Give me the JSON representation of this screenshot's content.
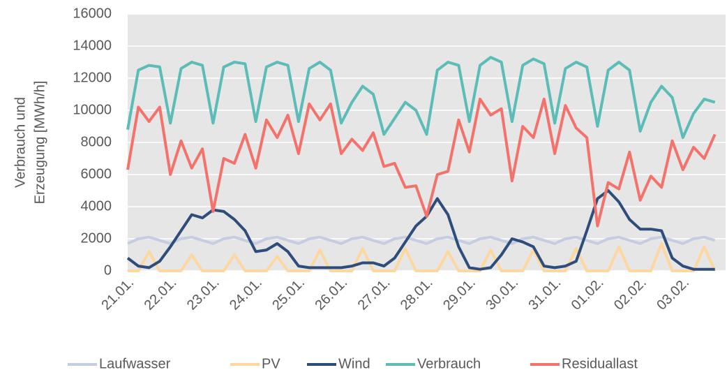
{
  "chart_data": {
    "type": "line",
    "y_label": [
      "Verbrauch und",
      "Erzeugung [MWh/h]"
    ],
    "categories": [
      "21.01.",
      null,
      null,
      null,
      "22.01.",
      null,
      null,
      null,
      "23.01.",
      null,
      null,
      null,
      "24.01.",
      null,
      null,
      null,
      "25.01.",
      null,
      null,
      null,
      "26.01.",
      null,
      null,
      null,
      "27.01.",
      null,
      null,
      null,
      "28.01.",
      null,
      null,
      null,
      "29.01.",
      null,
      null,
      null,
      "30.01.",
      null,
      null,
      null,
      "31.01.",
      null,
      null,
      null,
      "01.02.",
      null,
      null,
      null,
      "02.02.",
      null,
      null,
      null,
      "03.02.",
      null,
      null,
      null
    ],
    "series": [
      {
        "name": "Laufwasser",
        "color": "#c5cee0",
        "values": [
          1700,
          2000,
          2100,
          1900,
          1700,
          2000,
          2100,
          1900,
          1700,
          2000,
          2100,
          1900,
          1700,
          2000,
          2100,
          1900,
          1700,
          2000,
          2100,
          1900,
          1700,
          2000,
          2100,
          1900,
          1700,
          2000,
          2100,
          1900,
          1700,
          2000,
          2100,
          1900,
          1700,
          2000,
          2100,
          1900,
          1700,
          2000,
          2100,
          1900,
          1700,
          2000,
          2100,
          1900,
          1700,
          2000,
          2100,
          1900,
          1700,
          2000,
          2100,
          1900,
          1700,
          2000,
          2100,
          1900
        ]
      },
      {
        "name": "PV",
        "color": "#fdd7a0",
        "values": [
          0,
          0,
          1200,
          0,
          0,
          0,
          1000,
          0,
          0,
          0,
          1000,
          0,
          0,
          0,
          900,
          0,
          0,
          0,
          1300,
          0,
          0,
          0,
          1400,
          0,
          0,
          0,
          1400,
          0,
          0,
          0,
          1200,
          0,
          0,
          0,
          1300,
          0,
          0,
          0,
          1300,
          0,
          0,
          0,
          1400,
          0,
          0,
          0,
          1500,
          0,
          0,
          0,
          1700,
          0,
          0,
          0,
          1500,
          0
        ]
      },
      {
        "name": "Wind",
        "color": "#2e4d7b",
        "values": [
          800,
          300,
          200,
          600,
          1500,
          2500,
          3500,
          3300,
          3800,
          3700,
          3200,
          2500,
          1200,
          1300,
          1700,
          1200,
          300,
          200,
          200,
          200,
          200,
          300,
          500,
          500,
          300,
          800,
          1800,
          2800,
          3400,
          4500,
          3500,
          1500,
          200,
          100,
          200,
          1000,
          2000,
          1800,
          1500,
          300,
          200,
          300,
          600,
          2500,
          4500,
          5000,
          4300,
          3200,
          2600,
          2600,
          2500,
          800,
          300,
          100,
          100,
          100
        ]
      },
      {
        "name": "Verbrauch",
        "color": "#5bbcb8",
        "values": [
          8800,
          12500,
          12800,
          12700,
          9200,
          12600,
          13000,
          12800,
          9200,
          12700,
          13000,
          12900,
          9300,
          12700,
          13000,
          12800,
          9300,
          12600,
          13000,
          12500,
          9200,
          10500,
          11500,
          11000,
          8500,
          9500,
          10500,
          10000,
          8500,
          12500,
          13000,
          12800,
          9300,
          12800,
          13300,
          13000,
          9300,
          12800,
          13200,
          12900,
          9200,
          12600,
          13000,
          12700,
          9000,
          12500,
          13000,
          12500,
          8700,
          10500,
          11500,
          10800,
          8300,
          9800,
          10700,
          10500
        ]
      },
      {
        "name": "Residuallast",
        "color": "#f4726c",
        "values": [
          6300,
          10200,
          9300,
          10200,
          6000,
          8100,
          6400,
          7600,
          3700,
          7000,
          6700,
          8500,
          6400,
          9400,
          8300,
          9700,
          7300,
          10400,
          9400,
          10400,
          7300,
          8200,
          7500,
          8600,
          6500,
          6700,
          5200,
          5300,
          3400,
          6000,
          6200,
          9400,
          7400,
          10700,
          9700,
          10100,
          5600,
          9000,
          8300,
          10700,
          7300,
          10300,
          8900,
          8300,
          2800,
          5500,
          5100,
          7400,
          4400,
          5900,
          5200,
          8100,
          6300,
          7700,
          7000,
          8500
        ]
      }
    ],
    "ylim": [
      0,
      16000
    ],
    "yticks": [
      0,
      2000,
      4000,
      6000,
      8000,
      10000,
      12000,
      14000,
      16000
    ],
    "grid": true,
    "legend": "bottom"
  }
}
